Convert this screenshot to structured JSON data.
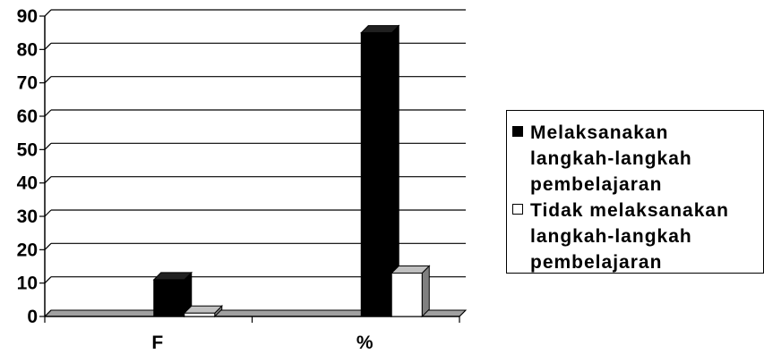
{
  "chart_data": {
    "type": "bar",
    "title": "",
    "xlabel": "",
    "ylabel": "",
    "categories": [
      "F",
      "%"
    ],
    "series": [
      {
        "name": "Melaksanakan\nlangkah-langkah\npembelajaran",
        "values": [
          11,
          85
        ],
        "color": "#000000"
      },
      {
        "name": "Tidak melaksanakan\nlangkah-langkah\npembelajaran",
        "values": [
          1,
          13
        ],
        "color": "#ffffff"
      }
    ],
    "ylim": [
      0,
      90
    ],
    "yticks": [
      "0",
      "10",
      "20",
      "30",
      "40",
      "50",
      "60",
      "70",
      "80",
      "90"
    ],
    "grid": true,
    "style": "3d",
    "legend_position": "right"
  }
}
